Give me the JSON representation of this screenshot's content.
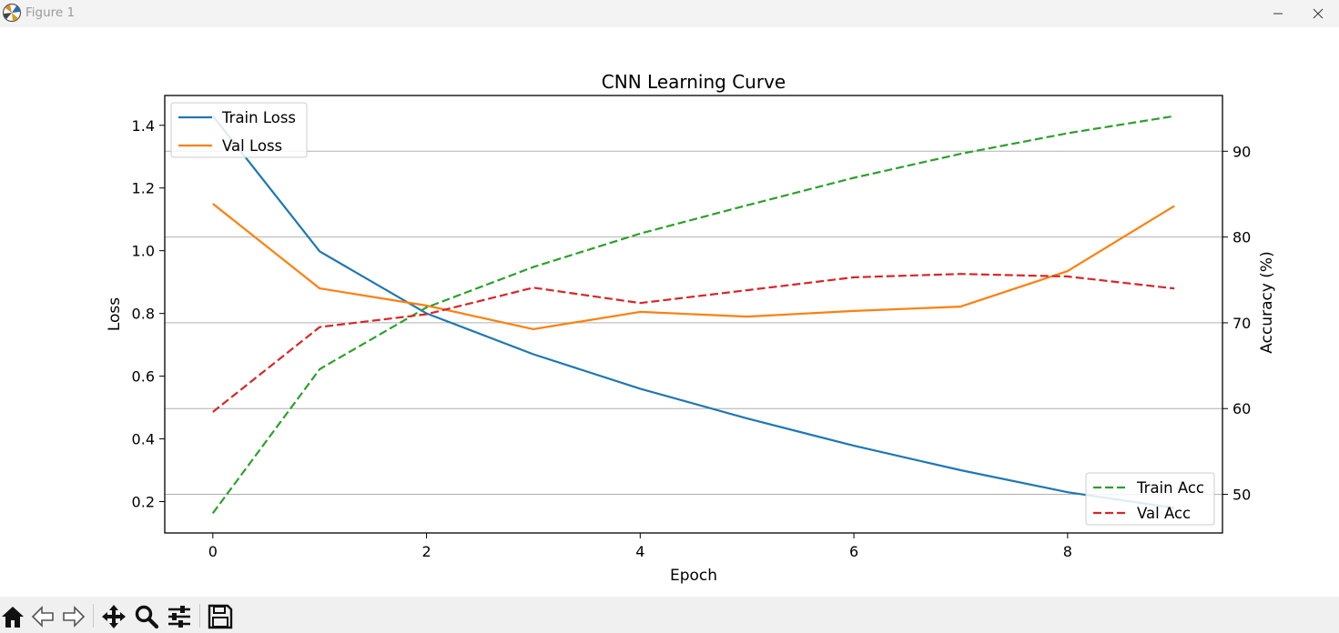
{
  "window": {
    "title": "Figure 1",
    "icon": "matplotlib-logo-icon",
    "controls": [
      "minimize-icon",
      "maximize-icon",
      "close-icon"
    ]
  },
  "toolbar": {
    "buttons": [
      "home-icon",
      "back-arrow-icon",
      "forward-arrow-icon",
      "pan-icon",
      "zoom-icon",
      "configure-subplots-icon",
      "save-icon"
    ]
  },
  "chart_data": {
    "type": "line",
    "title": "CNN Learning Curve",
    "xlabel": "Epoch",
    "ylabel": "Loss",
    "y2label": "Accuracy (%)",
    "x": [
      0,
      1,
      2,
      3,
      4,
      5,
      6,
      7,
      8,
      9
    ],
    "xlim": [
      -0.45,
      9.45
    ],
    "ylim": [
      0.1,
      1.495
    ],
    "y2lim": [
      45.5,
      96.5
    ],
    "xticks": [
      "0",
      "2",
      "4",
      "6",
      "8"
    ],
    "yticks": [
      "0.2",
      "0.4",
      "0.6",
      "0.8",
      "1.0",
      "1.2",
      "1.4"
    ],
    "y2ticks": [
      "50",
      "60",
      "70",
      "80",
      "90"
    ],
    "grid": "right-axis horizontal",
    "series": [
      {
        "name": "Train Loss",
        "axis": "left",
        "style": "solid",
        "color": "#1f77b4",
        "values": [
          1.43,
          0.998,
          0.8,
          0.67,
          0.56,
          0.465,
          0.378,
          0.3,
          0.23,
          0.18
        ]
      },
      {
        "name": "Val Loss",
        "axis": "left",
        "style": "solid",
        "color": "#ff7f0e",
        "values": [
          1.15,
          0.88,
          0.825,
          0.75,
          0.805,
          0.79,
          0.808,
          0.822,
          0.935,
          1.143
        ]
      },
      {
        "name": "Train Acc",
        "axis": "right",
        "style": "dashed",
        "color": "#2ca02c",
        "values": [
          47.8,
          64.6,
          71.8,
          76.5,
          80.4,
          83.7,
          86.9,
          89.7,
          92.1,
          94.1
        ]
      },
      {
        "name": "Val Acc",
        "axis": "right",
        "style": "dashed",
        "color": "#d62728",
        "values": [
          59.6,
          69.5,
          71.0,
          74.1,
          72.3,
          73.8,
          75.3,
          75.7,
          75.4,
          74.0
        ]
      }
    ],
    "legends": [
      {
        "placement": "upper-left",
        "entries": [
          "Train Loss",
          "Val Loss"
        ]
      },
      {
        "placement": "lower-right",
        "entries": [
          "Train Acc",
          "Val Acc"
        ]
      }
    ]
  }
}
